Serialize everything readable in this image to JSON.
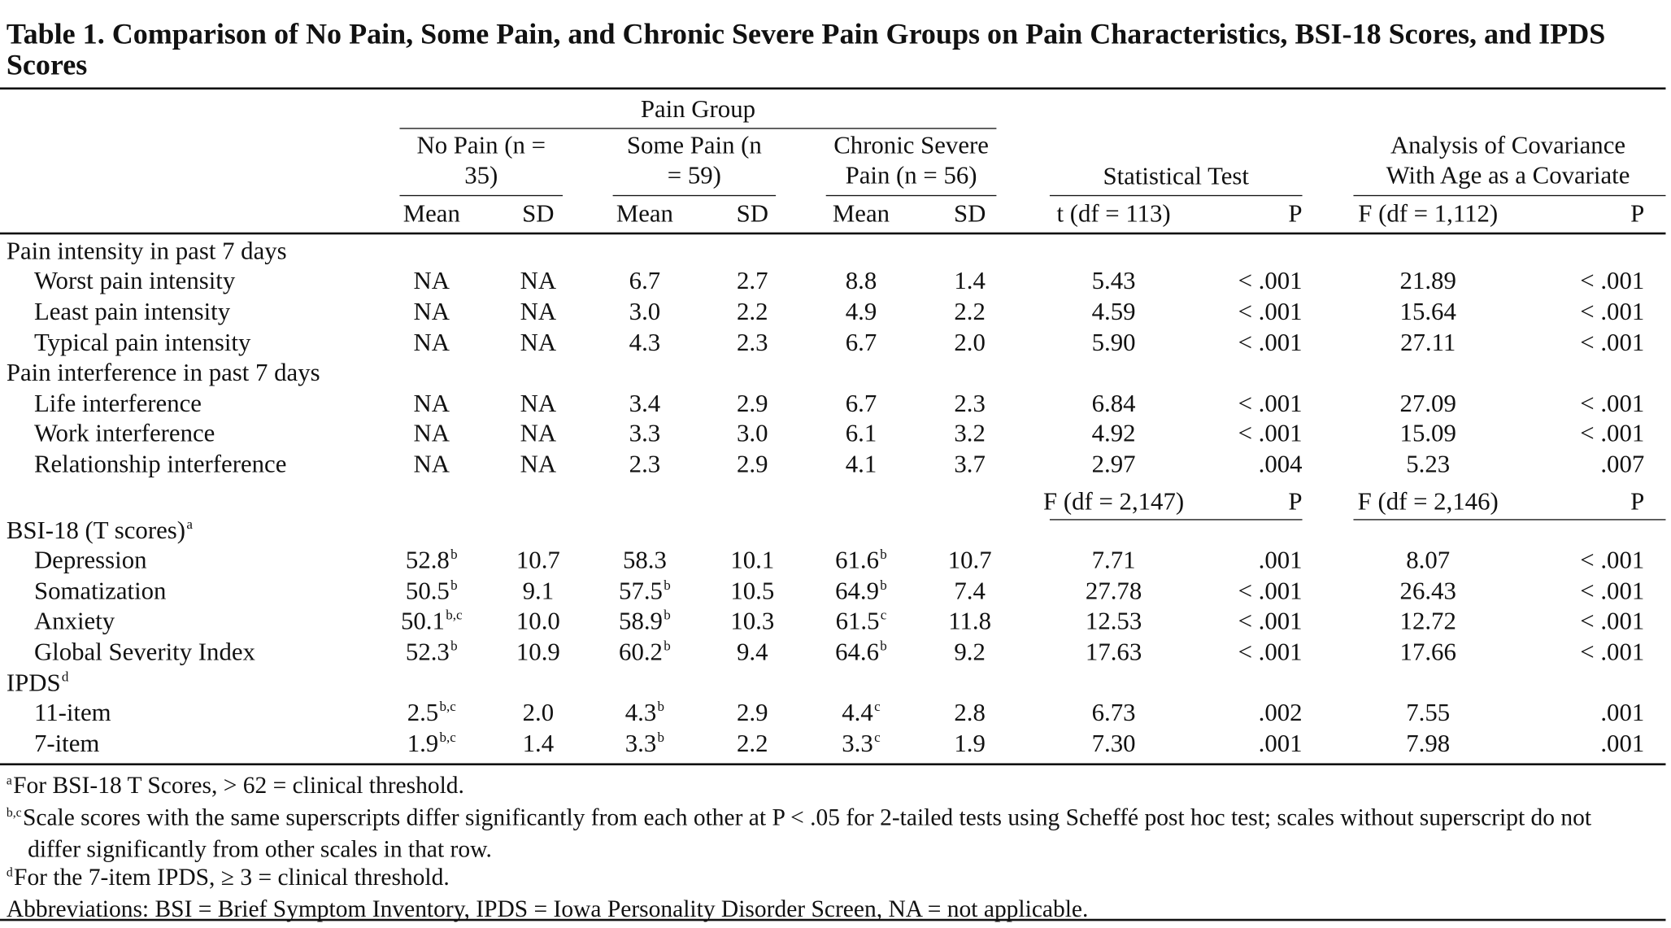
{
  "title": "Table 1. Comparison of No Pain, Some Pain, and Chronic Severe Pain Groups on Pain Characteristics, BSI-18 Scores, and IPDS Scores",
  "header": {
    "pain_group": "Pain Group",
    "groups": [
      "No Pain (n = 35)",
      "Some Pain (n = 59)",
      "Chronic Severe Pain (n = 56)"
    ],
    "statistical_test": "Statistical Test",
    "ancova": "Analysis of Covariance With Age as a Covariate",
    "columns": [
      "Mean",
      "SD",
      "Mean",
      "SD",
      "Mean",
      "SD",
      "t (df = 113)",
      "P",
      "F (df = 1,112)",
      "P"
    ]
  },
  "sections": [
    {
      "label": "Pain intensity in past 7 days",
      "rows": [
        {
          "label": "Worst pain intensity",
          "cells": [
            "NA",
            "NA",
            "6.7",
            "2.7",
            "8.8",
            "1.4",
            "5.43",
            "< .001",
            "21.89",
            "< .001"
          ]
        },
        {
          "label": "Least pain intensity",
          "cells": [
            "NA",
            "NA",
            "3.0",
            "2.2",
            "4.9",
            "2.2",
            "4.59",
            "< .001",
            "15.64",
            "< .001"
          ]
        },
        {
          "label": "Typical pain intensity",
          "cells": [
            "NA",
            "NA",
            "4.3",
            "2.3",
            "6.7",
            "2.0",
            "5.90",
            "< .001",
            "27.11",
            "< .001"
          ]
        }
      ]
    },
    {
      "label": "Pain interference in past 7 days",
      "rows": [
        {
          "label": "Life interference",
          "cells": [
            "NA",
            "NA",
            "3.4",
            "2.9",
            "6.7",
            "2.3",
            "6.84",
            "< .001",
            "27.09",
            "< .001"
          ]
        },
        {
          "label": "Work interference",
          "cells": [
            "NA",
            "NA",
            "3.3",
            "3.0",
            "6.1",
            "3.2",
            "4.92",
            "< .001",
            "15.09",
            "< .001"
          ]
        },
        {
          "label": "Relationship interference",
          "cells": [
            "NA",
            "NA",
            "2.3",
            "2.9",
            "4.1",
            "3.7",
            "2.97",
            ".004",
            "5.23",
            ".007"
          ]
        }
      ]
    },
    {
      "label": {
        "text": "BSI-18 (T scores)",
        "sup": "a"
      },
      "columns": [
        "F (df = 2,147)",
        "P",
        "F (df = 2,146)",
        "P"
      ],
      "rows": [
        {
          "label": "Depression",
          "cells": [
            {
              "text": "52.8",
              "sup": "b"
            },
            "10.7",
            "58.3",
            "10.1",
            {
              "text": "61.6",
              "sup": "b"
            },
            "10.7",
            "7.71",
            ".001",
            "8.07",
            "< .001"
          ]
        },
        {
          "label": "Somatization",
          "cells": [
            {
              "text": "50.5",
              "sup": "b"
            },
            "9.1",
            {
              "text": "57.5",
              "sup": "b"
            },
            "10.5",
            {
              "text": "64.9",
              "sup": "b"
            },
            "7.4",
            "27.78",
            "< .001",
            "26.43",
            "< .001"
          ]
        },
        {
          "label": "Anxiety",
          "cells": [
            {
              "text": "50.1",
              "sup": "b,c"
            },
            "10.0",
            {
              "text": "58.9",
              "sup": "b"
            },
            "10.3",
            {
              "text": "61.5",
              "sup": "c"
            },
            "11.8",
            "12.53",
            "< .001",
            "12.72",
            "< .001"
          ]
        },
        {
          "label": "Global Severity Index",
          "cells": [
            {
              "text": "52.3",
              "sup": "b"
            },
            "10.9",
            {
              "text": "60.2",
              "sup": "b"
            },
            "9.4",
            {
              "text": "64.6",
              "sup": "b"
            },
            "9.2",
            "17.63",
            "< .001",
            "17.66",
            "< .001"
          ]
        }
      ]
    },
    {
      "label": {
        "text": "IPDS",
        "sup": "d"
      },
      "rows": [
        {
          "label": "11-item",
          "cells": [
            {
              "text": "2.5",
              "sup": "b,c"
            },
            "2.0",
            {
              "text": "4.3",
              "sup": "b"
            },
            "2.9",
            {
              "text": "4.4",
              "sup": "c"
            },
            "2.8",
            "6.73",
            ".002",
            "7.55",
            ".001"
          ]
        },
        {
          "label": "7-item",
          "cells": [
            {
              "text": "1.9",
              "sup": "b,c"
            },
            "1.4",
            {
              "text": "3.3",
              "sup": "b"
            },
            "2.2",
            {
              "text": "3.3",
              "sup": "c"
            },
            "1.9",
            "7.30",
            ".001",
            "7.98",
            ".001"
          ]
        }
      ]
    }
  ],
  "footnotes": [
    {
      "sup": "a",
      "text": "For BSI-18 T Scores, > 62 = clinical threshold."
    },
    {
      "sup": "b,c",
      "text": "Scale scores with the same superscripts differ significantly from each other at P < .05 for 2-tailed tests using Scheffé post hoc test; scales without superscript do not differ significantly from other scales in that row."
    },
    {
      "sup": "d",
      "text": "For the 7-item IPDS, ≥ 3 = clinical threshold."
    },
    {
      "text": "Abbreviations: BSI = Brief Symptom Inventory, IPDS = Iowa Personality Disorder Screen, NA = not applicable."
    }
  ]
}
